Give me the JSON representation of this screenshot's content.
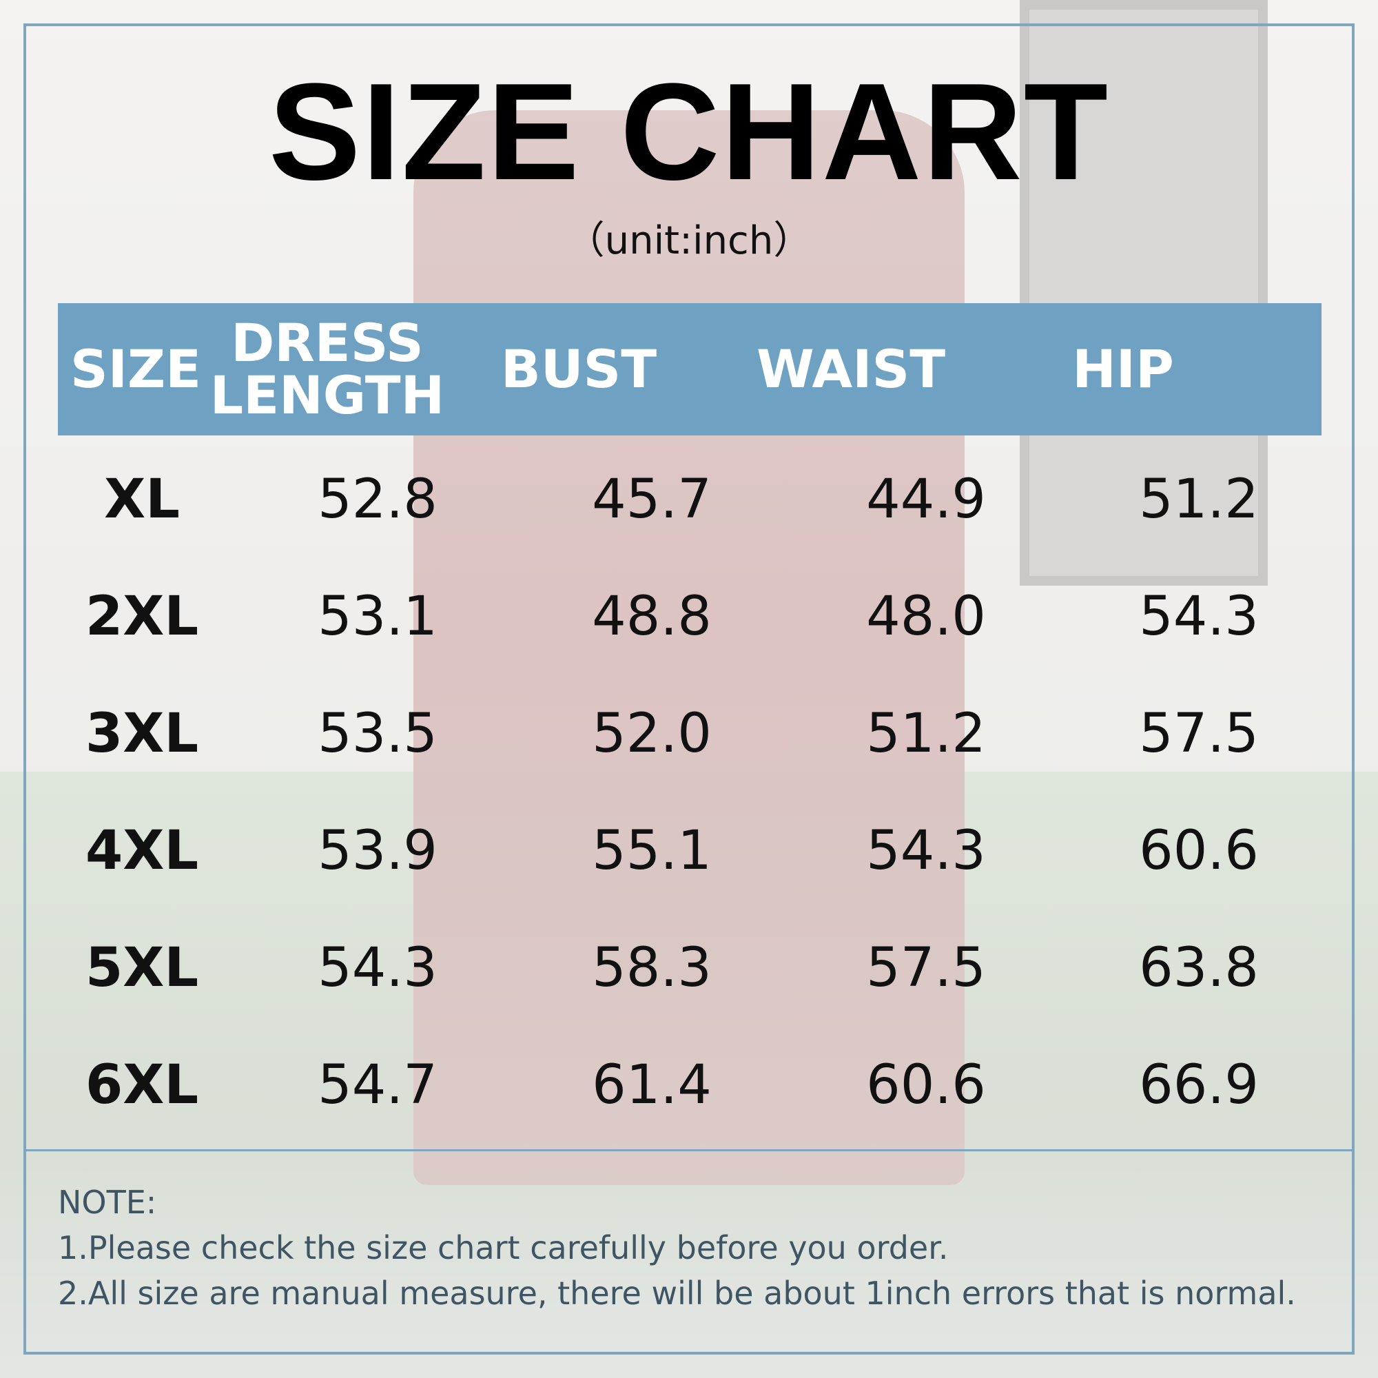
{
  "chart_data": {
    "type": "table",
    "title": "SIZE CHART",
    "subtitle": "（unit:inch）",
    "columns": [
      {
        "key": "size",
        "label": "SIZE"
      },
      {
        "key": "dress_length",
        "label_lines": [
          "DRESS",
          "LENGTH"
        ]
      },
      {
        "key": "bust",
        "label": "BUST"
      },
      {
        "key": "waist",
        "label": "WAIST"
      },
      {
        "key": "hip",
        "label": "HIP"
      }
    ],
    "rows": [
      {
        "size": "XL",
        "dress_length": "52.8",
        "bust": "45.7",
        "waist": "44.9",
        "hip": "51.2"
      },
      {
        "size": "2XL",
        "dress_length": "53.1",
        "bust": "48.8",
        "waist": "48.0",
        "hip": "54.3"
      },
      {
        "size": "3XL",
        "dress_length": "53.5",
        "bust": "52.0",
        "waist": "51.2",
        "hip": "57.5"
      },
      {
        "size": "4XL",
        "dress_length": "53.9",
        "bust": "55.1",
        "waist": "54.3",
        "hip": "60.6"
      },
      {
        "size": "5XL",
        "dress_length": "54.3",
        "bust": "58.3",
        "waist": "57.5",
        "hip": "63.8"
      },
      {
        "size": "6XL",
        "dress_length": "54.7",
        "bust": "61.4",
        "waist": "60.6",
        "hip": "66.9"
      }
    ],
    "header_color": "#6fa2c2"
  },
  "notes": {
    "heading": "NOTE:",
    "items": [
      "1.Please check the size chart carefully before you order.",
      "2.All size are manual measure, there will be about 1inch errors that is normal."
    ]
  },
  "colors": {
    "frame": "#7ea6c1",
    "note_text": "#3f5563"
  }
}
